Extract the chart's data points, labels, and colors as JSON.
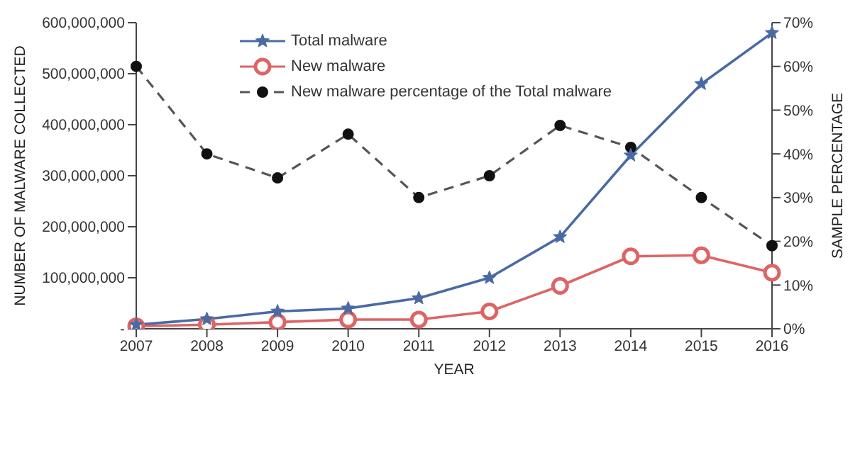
{
  "chart_data": {
    "type": "line",
    "xlabel": "YEAR",
    "ylabel": "NUMBER OF MALWARE COLLECTED",
    "y2label": "SAMPLE PERCENTAGE",
    "categories": [
      "2007",
      "2008",
      "2009",
      "2010",
      "2011",
      "2012",
      "2013",
      "2014",
      "2015",
      "2016"
    ],
    "series": [
      {
        "name": "Total malware",
        "color": "#4a6aa5",
        "marker": "star",
        "line_style": "solid",
        "values": [
          8000000,
          19000000,
          34000000,
          40000000,
          60000000,
          100000000,
          180000000,
          340000000,
          480000000,
          580000000
        ]
      },
      {
        "name": "New malware",
        "color": "#de6464",
        "marker": "circle",
        "line_style": "solid",
        "values": [
          5000000,
          8000000,
          13000000,
          18000000,
          18000000,
          34000000,
          84000000,
          142000000,
          144000000,
          110000000
        ]
      },
      {
        "name": "New malware percentage of the Total malware",
        "color": "#555555",
        "marker": "circle",
        "line_style": "dashed",
        "axis": "y2",
        "values": [
          60,
          40,
          34.5,
          44.5,
          30,
          35,
          46.5,
          41.5,
          30,
          19
        ]
      }
    ],
    "ylim": [
      0,
      600000000
    ],
    "yticks": [
      {
        "value": 0,
        "label": "-"
      },
      {
        "value": 100000000,
        "label": "100,000,000"
      },
      {
        "value": 200000000,
        "label": "200,000,000"
      },
      {
        "value": 300000000,
        "label": "300,000,000"
      },
      {
        "value": 400000000,
        "label": "400,000,000"
      },
      {
        "value": 500000000,
        "label": "500,000,000"
      },
      {
        "value": 600000000,
        "label": "600,000,000"
      }
    ],
    "y2lim": [
      0,
      70
    ],
    "y2ticks": [
      {
        "value": 0,
        "label": "0%"
      },
      {
        "value": 10,
        "label": "10%"
      },
      {
        "value": 20,
        "label": "20%"
      },
      {
        "value": 30,
        "label": "30%"
      },
      {
        "value": 40,
        "label": "40%"
      },
      {
        "value": 50,
        "label": "50%"
      },
      {
        "value": 60,
        "label": "60%"
      },
      {
        "value": 70,
        "label": "70%"
      }
    ],
    "grid": false,
    "legend": "top left"
  }
}
